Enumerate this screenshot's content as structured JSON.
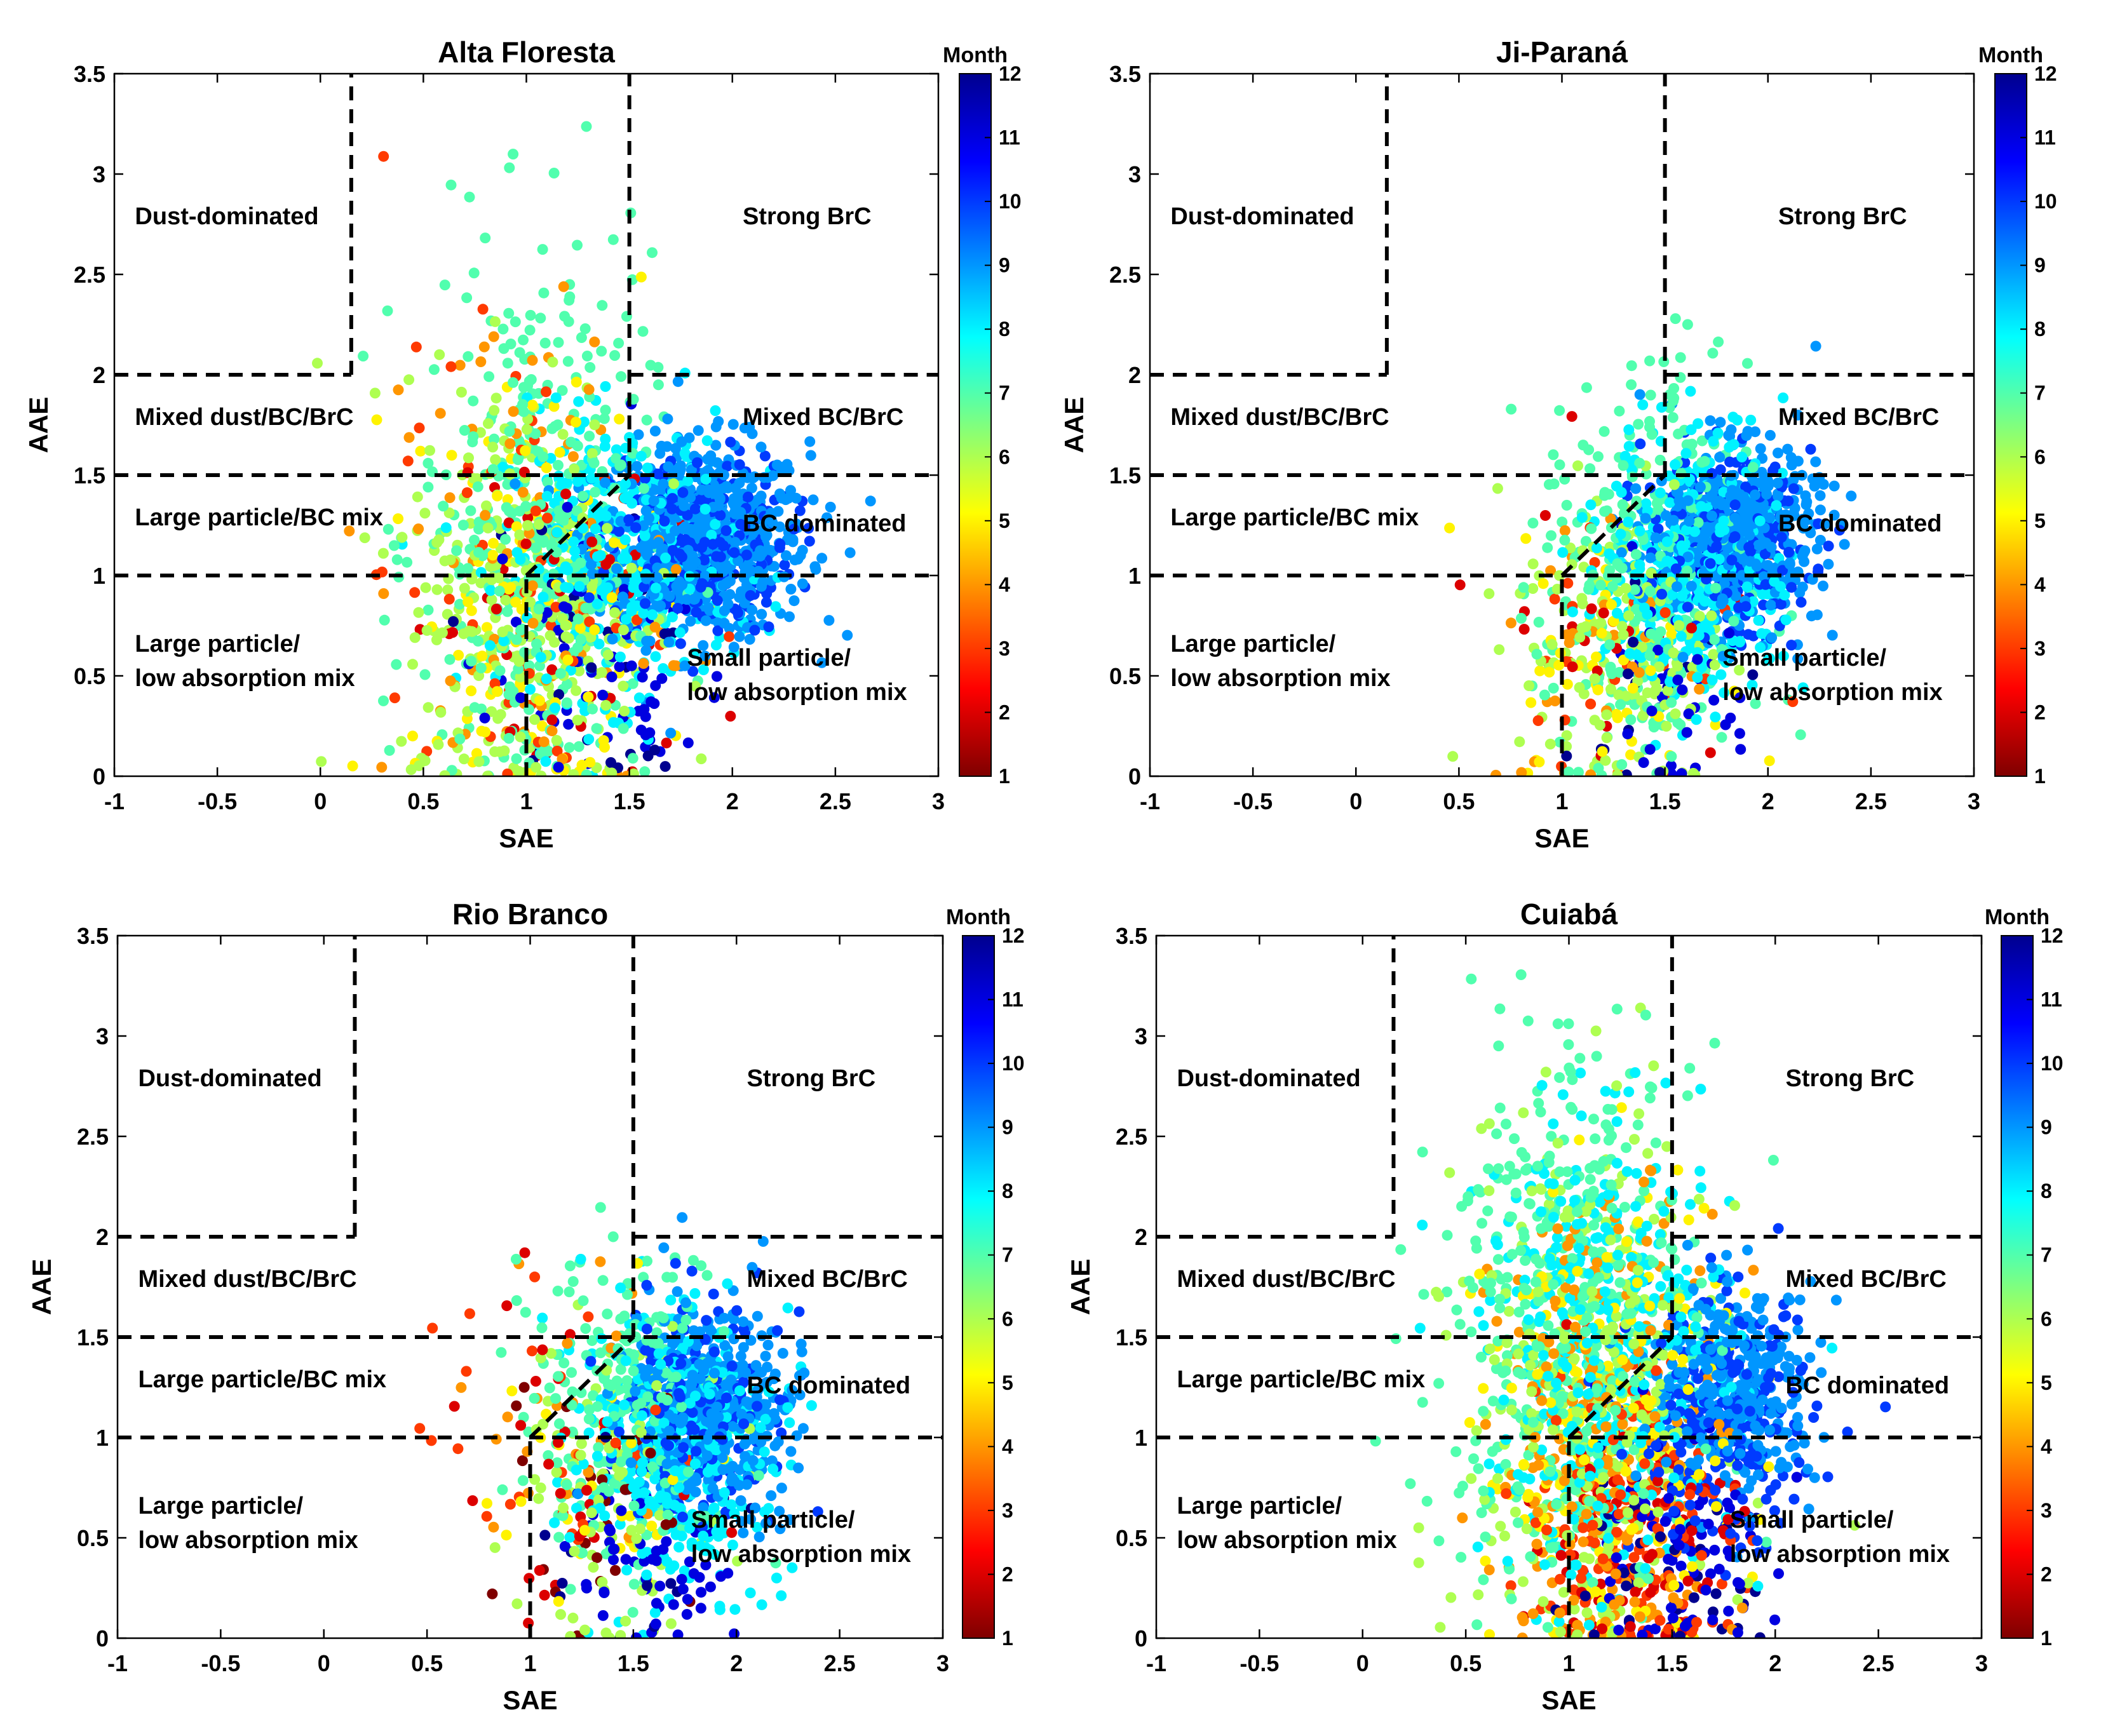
{
  "figure": {
    "colorbar_title": "Month",
    "colorbar_ticks": [
      1,
      2,
      3,
      4,
      5,
      6,
      7,
      8,
      9,
      10,
      11,
      12
    ],
    "colormap": [
      "#7f0000",
      "#ff0000",
      "#ff7f00",
      "#ffff00",
      "#7fff7f",
      "#00ffff",
      "#007fff",
      "#0000ff",
      "#00008f"
    ]
  },
  "chart_data": [
    {
      "type": "scatter",
      "title": "Alta Floresta",
      "xlabel": "SAE",
      "ylabel": "AAE",
      "xlim": [
        -1,
        3
      ],
      "ylim": [
        0,
        3.5
      ],
      "xticks": [
        "-1",
        "-0.5",
        "0",
        "0.5",
        "1",
        "1.5",
        "2",
        "2.5",
        "3"
      ],
      "yticks": [
        "0",
        "0.5",
        "1",
        "1.5",
        "2",
        "2.5",
        "3",
        "3.5"
      ],
      "boundaries": {
        "horizontal": [
          1.0,
          1.5
        ],
        "dust_vertical_sae": 0.15,
        "brc_vertical_sae": 1.5,
        "upper_aae": 2.0,
        "diagonal": [
          [
            1.0,
            1.0
          ],
          [
            1.5,
            1.5
          ]
        ],
        "lower_vertical_sae": 1.0
      },
      "regions": [
        {
          "lines": [
            "Dust-dominated"
          ],
          "x": -0.9,
          "y": 2.75
        },
        {
          "lines": [
            "Strong BrC"
          ],
          "x": 2.05,
          "y": 2.75
        },
        {
          "lines": [
            "Mixed dust/BC/BrC"
          ],
          "x": -0.9,
          "y": 1.75
        },
        {
          "lines": [
            "Mixed BC/BrC"
          ],
          "x": 2.05,
          "y": 1.75
        },
        {
          "lines": [
            "Large particle/BC mix"
          ],
          "x": -0.9,
          "y": 1.25
        },
        {
          "lines": [
            "BC dominated"
          ],
          "x": 2.05,
          "y": 1.22
        },
        {
          "lines": [
            "Large particle/",
            "low absorption mix"
          ],
          "x": -0.9,
          "y": 0.62
        },
        {
          "lines": [
            "Small particle/",
            "low absorption mix"
          ],
          "x": 1.78,
          "y": 0.55
        }
      ],
      "clusters": [
        {
          "month": 9,
          "n": 650,
          "cx": 1.85,
          "cy": 1.18,
          "sx": 0.26,
          "sy": 0.24
        },
        {
          "month": 10,
          "n": 260,
          "cx": 1.85,
          "cy": 1.15,
          "sx": 0.22,
          "sy": 0.22
        },
        {
          "month": 8,
          "n": 330,
          "cx": 1.45,
          "cy": 1.1,
          "sx": 0.28,
          "sy": 0.35
        },
        {
          "month": 7,
          "n": 380,
          "cx": 1.05,
          "cy": 1.2,
          "sx": 0.28,
          "sy": 0.7
        },
        {
          "month": 6,
          "n": 300,
          "cx": 1.0,
          "cy": 0.9,
          "sx": 0.3,
          "sy": 0.55
        },
        {
          "month": 5,
          "n": 110,
          "cx": 1.05,
          "cy": 0.85,
          "sx": 0.32,
          "sy": 0.6
        },
        {
          "month": 4,
          "n": 80,
          "cx": 1.0,
          "cy": 1.0,
          "sx": 0.35,
          "sy": 0.7
        },
        {
          "month": 3,
          "n": 60,
          "cx": 1.0,
          "cy": 0.95,
          "sx": 0.35,
          "sy": 0.6
        },
        {
          "month": 2,
          "n": 45,
          "cx": 1.0,
          "cy": 0.85,
          "sx": 0.3,
          "sy": 0.55
        },
        {
          "month": 11,
          "n": 70,
          "cx": 1.4,
          "cy": 0.6,
          "sx": 0.3,
          "sy": 0.35
        },
        {
          "month": 12,
          "n": 30,
          "cx": 1.2,
          "cy": 0.5,
          "sx": 0.3,
          "sy": 0.4
        }
      ],
      "colorbar_title": "Month"
    },
    {
      "type": "scatter",
      "title": "Ji-Paraná",
      "xlabel": "SAE",
      "ylabel": "AAE",
      "xlim": [
        -1,
        3
      ],
      "ylim": [
        0,
        3.5
      ],
      "xticks": [
        "-1",
        "-0.5",
        "0",
        "0.5",
        "1",
        "1.5",
        "2",
        "2.5",
        "3"
      ],
      "yticks": [
        "0",
        "0.5",
        "1",
        "1.5",
        "2",
        "2.5",
        "3",
        "3.5"
      ],
      "boundaries": {
        "horizontal": [
          1.0,
          1.5
        ],
        "dust_vertical_sae": 0.15,
        "brc_vertical_sae": 1.5,
        "upper_aae": 2.0,
        "diagonal": [
          [
            1.0,
            1.0
          ],
          [
            1.5,
            1.5
          ]
        ],
        "lower_vertical_sae": 1.0
      },
      "regions": [
        {
          "lines": [
            "Dust-dominated"
          ],
          "x": -0.9,
          "y": 2.75
        },
        {
          "lines": [
            "Strong BrC"
          ],
          "x": 2.05,
          "y": 2.75
        },
        {
          "lines": [
            "Mixed dust/BC/BrC"
          ],
          "x": -0.9,
          "y": 1.75
        },
        {
          "lines": [
            "Mixed BC/BrC"
          ],
          "x": 2.05,
          "y": 1.75
        },
        {
          "lines": [
            "Large particle/BC mix"
          ],
          "x": -0.9,
          "y": 1.25
        },
        {
          "lines": [
            "BC dominated"
          ],
          "x": 2.05,
          "y": 1.22
        },
        {
          "lines": [
            "Large particle/",
            "low absorption mix"
          ],
          "x": -0.9,
          "y": 0.62
        },
        {
          "lines": [
            "Small particle/",
            "low absorption mix"
          ],
          "x": 1.78,
          "y": 0.55
        }
      ],
      "clusters": [
        {
          "month": 9,
          "n": 500,
          "cx": 1.85,
          "cy": 1.2,
          "sx": 0.2,
          "sy": 0.22
        },
        {
          "month": 10,
          "n": 200,
          "cx": 1.8,
          "cy": 1.15,
          "sx": 0.2,
          "sy": 0.22
        },
        {
          "month": 8,
          "n": 350,
          "cx": 1.65,
          "cy": 1.05,
          "sx": 0.22,
          "sy": 0.35
        },
        {
          "month": 7,
          "n": 280,
          "cx": 1.4,
          "cy": 0.95,
          "sx": 0.25,
          "sy": 0.55
        },
        {
          "month": 6,
          "n": 150,
          "cx": 1.3,
          "cy": 0.7,
          "sx": 0.25,
          "sy": 0.4
        },
        {
          "month": 5,
          "n": 50,
          "cx": 1.3,
          "cy": 0.5,
          "sx": 0.25,
          "sy": 0.35
        },
        {
          "month": 4,
          "n": 30,
          "cx": 1.2,
          "cy": 0.6,
          "sx": 0.3,
          "sy": 0.4
        },
        {
          "month": 3,
          "n": 25,
          "cx": 1.3,
          "cy": 0.7,
          "sx": 0.3,
          "sy": 0.4
        },
        {
          "month": 2,
          "n": 20,
          "cx": 1.2,
          "cy": 0.8,
          "sx": 0.3,
          "sy": 0.4
        },
        {
          "month": 11,
          "n": 50,
          "cx": 1.55,
          "cy": 0.5,
          "sx": 0.2,
          "sy": 0.35
        },
        {
          "month": 12,
          "n": 15,
          "cx": 1.4,
          "cy": 0.5,
          "sx": 0.25,
          "sy": 0.35
        }
      ],
      "colorbar_title": "Month"
    },
    {
      "type": "scatter",
      "title": "Rio Branco",
      "xlabel": "SAE",
      "ylabel": "AAE",
      "xlim": [
        -1,
        3
      ],
      "ylim": [
        0,
        3.5
      ],
      "xticks": [
        "-1",
        "-0.5",
        "0",
        "0.5",
        "1",
        "1.5",
        "2",
        "2.5",
        "3"
      ],
      "yticks": [
        "0",
        "0.5",
        "1",
        "1.5",
        "2",
        "2.5",
        "3",
        "3.5"
      ],
      "boundaries": {
        "horizontal": [
          1.0,
          1.5
        ],
        "dust_vertical_sae": 0.15,
        "brc_vertical_sae": 1.5,
        "upper_aae": 2.0,
        "diagonal": [
          [
            1.0,
            1.0
          ],
          [
            1.5,
            1.5
          ]
        ],
        "lower_vertical_sae": 1.0
      },
      "regions": [
        {
          "lines": [
            "Dust-dominated"
          ],
          "x": -0.9,
          "y": 2.75
        },
        {
          "lines": [
            "Strong BrC"
          ],
          "x": 2.05,
          "y": 2.75
        },
        {
          "lines": [
            "Mixed dust/BC/BrC"
          ],
          "x": -0.9,
          "y": 1.75
        },
        {
          "lines": [
            "Mixed BC/BrC"
          ],
          "x": 2.05,
          "y": 1.75
        },
        {
          "lines": [
            "Large particle/BC mix"
          ],
          "x": -0.9,
          "y": 1.25
        },
        {
          "lines": [
            "BC dominated"
          ],
          "x": 2.05,
          "y": 1.22
        },
        {
          "lines": [
            "Large particle/",
            "low absorption mix"
          ],
          "x": -0.9,
          "y": 0.62
        },
        {
          "lines": [
            "Small particle/",
            "low absorption mix"
          ],
          "x": 1.78,
          "y": 0.55
        }
      ],
      "clusters": [
        {
          "month": 9,
          "n": 450,
          "cx": 1.85,
          "cy": 1.15,
          "sx": 0.2,
          "sy": 0.25
        },
        {
          "month": 10,
          "n": 200,
          "cx": 1.85,
          "cy": 1.15,
          "sx": 0.2,
          "sy": 0.25
        },
        {
          "month": 8,
          "n": 330,
          "cx": 1.7,
          "cy": 0.9,
          "sx": 0.22,
          "sy": 0.35
        },
        {
          "month": 7,
          "n": 230,
          "cx": 1.5,
          "cy": 1.1,
          "sx": 0.25,
          "sy": 0.4
        },
        {
          "month": 6,
          "n": 100,
          "cx": 1.45,
          "cy": 0.8,
          "sx": 0.25,
          "sy": 0.4
        },
        {
          "month": 5,
          "n": 30,
          "cx": 1.4,
          "cy": 0.8,
          "sx": 0.28,
          "sy": 0.4
        },
        {
          "month": 4,
          "n": 25,
          "cx": 1.2,
          "cy": 1.0,
          "sx": 0.3,
          "sy": 0.45
        },
        {
          "month": 3,
          "n": 25,
          "cx": 1.1,
          "cy": 1.0,
          "sx": 0.3,
          "sy": 0.45
        },
        {
          "month": 2,
          "n": 30,
          "cx": 1.1,
          "cy": 0.9,
          "sx": 0.3,
          "sy": 0.45
        },
        {
          "month": 1,
          "n": 25,
          "cx": 1.3,
          "cy": 0.6,
          "sx": 0.25,
          "sy": 0.35
        },
        {
          "month": 11,
          "n": 60,
          "cx": 1.6,
          "cy": 0.4,
          "sx": 0.2,
          "sy": 0.25
        },
        {
          "month": 12,
          "n": 15,
          "cx": 1.4,
          "cy": 0.4,
          "sx": 0.25,
          "sy": 0.3
        }
      ],
      "colorbar_title": "Month"
    },
    {
      "type": "scatter",
      "title": "Cuiabá",
      "xlabel": "SAE",
      "ylabel": "AAE",
      "xlim": [
        -1,
        3
      ],
      "ylim": [
        0,
        3.5
      ],
      "xticks": [
        "-1",
        "-0.5",
        "0",
        "0.5",
        "1",
        "1.5",
        "2",
        "2.5",
        "3"
      ],
      "yticks": [
        "0",
        "0.5",
        "1",
        "1.5",
        "2",
        "2.5",
        "3",
        "3.5"
      ],
      "boundaries": {
        "horizontal": [
          1.0,
          1.5
        ],
        "dust_vertical_sae": 0.15,
        "brc_vertical_sae": 1.5,
        "upper_aae": 2.0,
        "diagonal": [
          [
            1.0,
            1.0
          ],
          [
            1.5,
            1.5
          ]
        ],
        "lower_vertical_sae": 1.0
      },
      "regions": [
        {
          "lines": [
            "Dust-dominated"
          ],
          "x": -0.9,
          "y": 2.75
        },
        {
          "lines": [
            "Strong BrC"
          ],
          "x": 2.05,
          "y": 2.75
        },
        {
          "lines": [
            "Mixed dust/BC/BrC"
          ],
          "x": -0.9,
          "y": 1.75
        },
        {
          "lines": [
            "Mixed BC/BrC"
          ],
          "x": 2.05,
          "y": 1.75
        },
        {
          "lines": [
            "Large particle/BC mix"
          ],
          "x": -0.9,
          "y": 1.25
        },
        {
          "lines": [
            "BC dominated"
          ],
          "x": 2.05,
          "y": 1.22
        },
        {
          "lines": [
            "Large particle/",
            "low absorption mix"
          ],
          "x": -0.9,
          "y": 0.62
        },
        {
          "lines": [
            "Small particle/",
            "low absorption mix"
          ],
          "x": 1.78,
          "y": 0.55
        }
      ],
      "clusters": [
        {
          "month": 9,
          "n": 350,
          "cx": 1.8,
          "cy": 1.25,
          "sx": 0.2,
          "sy": 0.25
        },
        {
          "month": 10,
          "n": 250,
          "cx": 1.75,
          "cy": 1.05,
          "sx": 0.22,
          "sy": 0.3
        },
        {
          "month": 8,
          "n": 400,
          "cx": 1.2,
          "cy": 1.4,
          "sx": 0.3,
          "sy": 0.55
        },
        {
          "month": 7,
          "n": 450,
          "cx": 1.0,
          "cy": 1.6,
          "sx": 0.3,
          "sy": 0.65
        },
        {
          "month": 6,
          "n": 300,
          "cx": 1.1,
          "cy": 1.2,
          "sx": 0.3,
          "sy": 0.7
        },
        {
          "month": 5,
          "n": 180,
          "cx": 1.2,
          "cy": 1.0,
          "sx": 0.3,
          "sy": 0.6
        },
        {
          "month": 4,
          "n": 250,
          "cx": 1.2,
          "cy": 1.0,
          "sx": 0.28,
          "sy": 0.6
        },
        {
          "month": 3,
          "n": 150,
          "cx": 1.3,
          "cy": 0.6,
          "sx": 0.25,
          "sy": 0.4
        },
        {
          "month": 2,
          "n": 80,
          "cx": 1.3,
          "cy": 0.5,
          "sx": 0.25,
          "sy": 0.35
        },
        {
          "month": 11,
          "n": 80,
          "cx": 1.5,
          "cy": 0.4,
          "sx": 0.25,
          "sy": 0.3
        },
        {
          "month": 12,
          "n": 50,
          "cx": 1.4,
          "cy": 0.3,
          "sx": 0.25,
          "sy": 0.25
        }
      ],
      "colorbar_title": "Month"
    }
  ]
}
